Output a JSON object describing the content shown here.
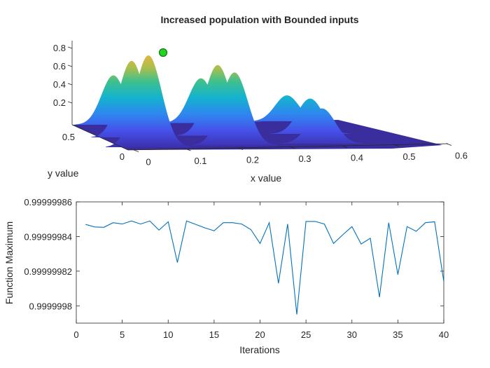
{
  "chart_data": [
    {
      "type": "surface",
      "title": "Increased population with Bounded inputs",
      "xlabel": "x value",
      "ylabel": "y value",
      "zlabel": "",
      "xticks": [
        "0",
        "0.1",
        "0.2",
        "0.3",
        "0.4",
        "0.5",
        "0.6"
      ],
      "yticks": [
        "0",
        "0.5"
      ],
      "zticks": [
        "0.2",
        "0.4",
        "0.6",
        "0.8"
      ],
      "colormap": "parula",
      "peak_heights": {
        "back_row": [
          0.42,
          0.38,
          0.22
        ],
        "middle_row": [
          0.65,
          0.6,
          0.3
        ],
        "front_row": [
          0.78,
          0.62,
          0.3
        ]
      },
      "max_marker": {
        "z": 0.75,
        "color": "#00c000"
      }
    },
    {
      "type": "line",
      "xlabel": "Iterations",
      "ylabel": "Function Maximum",
      "xlim": [
        0,
        40
      ],
      "ylim": [
        0.99999979,
        0.99999986
      ],
      "xticks": [
        "0",
        "5",
        "10",
        "15",
        "20",
        "25",
        "30",
        "35",
        "40"
      ],
      "yticks": [
        "0.9999998",
        "0.99999982",
        "0.99999984",
        "0.99999986"
      ],
      "color": "#0072bd",
      "x": [
        1,
        2,
        3,
        4,
        5,
        6,
        7,
        8,
        9,
        10,
        11,
        12,
        13,
        14,
        15,
        16,
        17,
        18,
        19,
        20,
        21,
        22,
        23,
        24,
        25,
        26,
        27,
        28,
        29,
        30,
        31,
        32,
        33,
        34,
        35,
        36,
        37,
        38,
        39,
        40
      ],
      "y": [
        0.999999847,
        0.9999998455,
        0.9999998453,
        0.999999848,
        0.9999998472,
        0.999999849,
        0.9999998472,
        0.999999849,
        0.9999998437,
        0.9999998485,
        0.999999825,
        0.999999849,
        0.999999847,
        0.999999845,
        0.9999998433,
        0.999999848,
        0.999999848,
        0.9999998472,
        0.999999844,
        0.999999836,
        0.999999848,
        0.999999813,
        0.9999998472,
        0.999999795,
        0.9999998487,
        0.9999998487,
        0.9999998472,
        0.999999836,
        0.999999841,
        0.9999998457,
        0.9999998357,
        0.999999839,
        0.999999805,
        0.999999848,
        0.999999818,
        0.9999998457,
        0.999999843,
        0.999999848,
        0.9999998485,
        0.999999814
      ]
    }
  ]
}
